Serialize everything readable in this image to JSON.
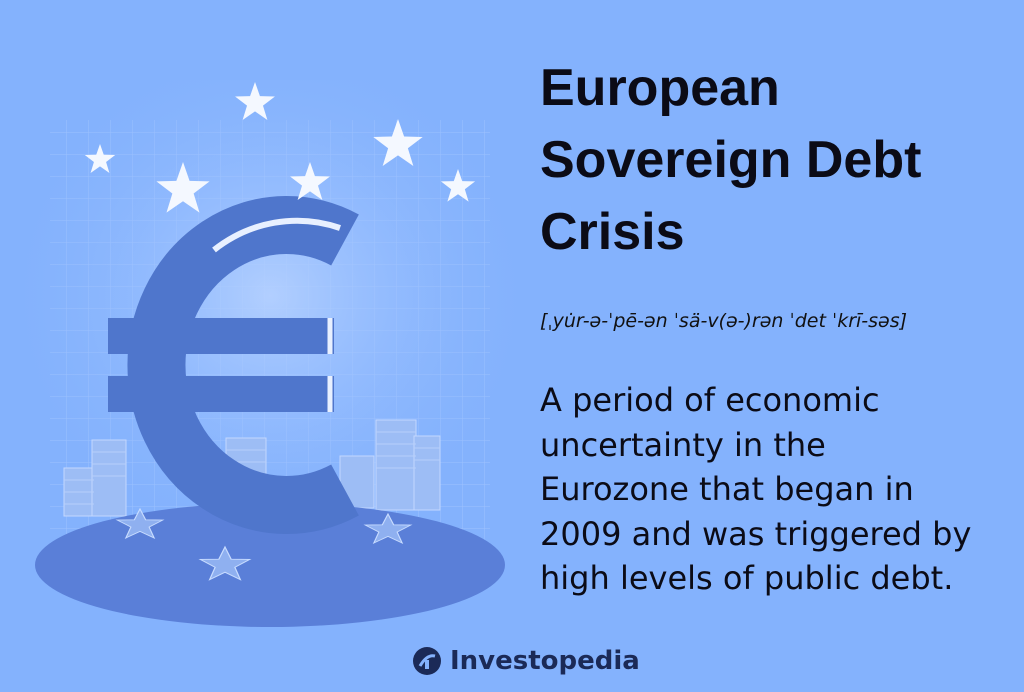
{
  "title_lines": [
    "European",
    "Sovereign Debt",
    "Crisis"
  ],
  "pronunciation": "[ˌyu̇r-ə-ˈpē-ən ˈsä-v(ə-)rən ˈdet ˈkrī-səs]",
  "description_lines": [
    "A period of economic",
    "uncertainty in the",
    "Eurozone that began in",
    "2009 and was triggered by",
    "high levels of public debt."
  ],
  "logo": "Investopedia"
}
